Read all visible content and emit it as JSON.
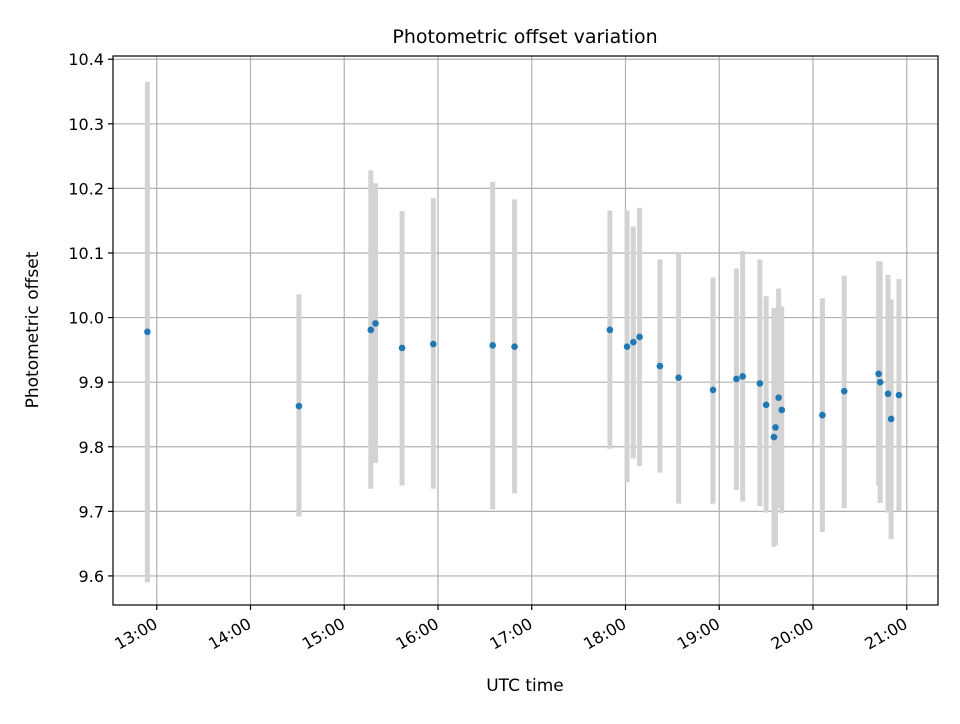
{
  "chart_data": {
    "type": "scatter",
    "title": "Photometric offset variation",
    "xlabel": "UTC time",
    "ylabel": "Photometric offset",
    "x_ticks": [
      "13:00",
      "14:00",
      "15:00",
      "16:00",
      "17:00",
      "18:00",
      "19:00",
      "20:00",
      "21:00"
    ],
    "y_ticks": [
      "9.6",
      "9.7",
      "9.8",
      "9.9",
      "10.0",
      "10.1",
      "10.2",
      "10.3",
      "10.4"
    ],
    "xlim": [
      "12:32",
      "21:20"
    ],
    "ylim": [
      9.555,
      10.405
    ],
    "grid": true,
    "marker_color": "#1f77b4",
    "errorbar_color": "#d3d3d3",
    "points": [
      {
        "x": "12:54",
        "y": 9.978,
        "lo": 9.59,
        "hi": 10.365
      },
      {
        "x": "14:31",
        "y": 9.863,
        "lo": 9.692,
        "hi": 10.036
      },
      {
        "x": "15:17",
        "y": 9.981,
        "lo": 9.735,
        "hi": 10.228
      },
      {
        "x": "15:20",
        "y": 9.991,
        "lo": 9.775,
        "hi": 10.208
      },
      {
        "x": "15:37",
        "y": 9.953,
        "lo": 9.74,
        "hi": 10.165
      },
      {
        "x": "15:57",
        "y": 9.959,
        "lo": 9.735,
        "hi": 10.185
      },
      {
        "x": "16:35",
        "y": 9.957,
        "lo": 9.703,
        "hi": 10.21
      },
      {
        "x": "16:49",
        "y": 9.955,
        "lo": 9.728,
        "hi": 10.183
      },
      {
        "x": "17:50",
        "y": 9.981,
        "lo": 9.797,
        "hi": 10.166
      },
      {
        "x": "18:01",
        "y": 9.955,
        "lo": 9.745,
        "hi": 10.166
      },
      {
        "x": "18:05",
        "y": 9.962,
        "lo": 9.782,
        "hi": 10.141
      },
      {
        "x": "18:09",
        "y": 9.97,
        "lo": 9.77,
        "hi": 10.17
      },
      {
        "x": "18:22",
        "y": 9.925,
        "lo": 9.76,
        "hi": 10.09
      },
      {
        "x": "18:34",
        "y": 9.907,
        "lo": 9.712,
        "hi": 10.1
      },
      {
        "x": "18:56",
        "y": 9.888,
        "lo": 9.712,
        "hi": 10.062
      },
      {
        "x": "19:11",
        "y": 9.905,
        "lo": 9.733,
        "hi": 10.076
      },
      {
        "x": "19:15",
        "y": 9.909,
        "lo": 9.715,
        "hi": 10.103
      },
      {
        "x": "19:26",
        "y": 9.898,
        "lo": 9.708,
        "hi": 10.09
      },
      {
        "x": "19:30",
        "y": 9.865,
        "lo": 9.698,
        "hi": 10.033
      },
      {
        "x": "19:35",
        "y": 9.815,
        "lo": 9.645,
        "hi": 10.015
      },
      {
        "x": "19:36",
        "y": 9.83,
        "lo": 9.648,
        "hi": 10.012
      },
      {
        "x": "19:38",
        "y": 9.876,
        "lo": 9.705,
        "hi": 10.045
      },
      {
        "x": "19:40",
        "y": 9.857,
        "lo": 9.697,
        "hi": 10.017
      },
      {
        "x": "20:06",
        "y": 9.849,
        "lo": 9.668,
        "hi": 10.03
      },
      {
        "x": "20:20",
        "y": 9.886,
        "lo": 9.705,
        "hi": 10.065
      },
      {
        "x": "20:42",
        "y": 9.913,
        "lo": 9.74,
        "hi": 10.087
      },
      {
        "x": "20:43",
        "y": 9.9,
        "lo": 9.713,
        "hi": 10.087
      },
      {
        "x": "20:48",
        "y": 9.882,
        "lo": 9.698,
        "hi": 10.066
      },
      {
        "x": "20:50",
        "y": 9.843,
        "lo": 9.657,
        "hi": 10.028
      },
      {
        "x": "20:55",
        "y": 9.88,
        "lo": 9.7,
        "hi": 10.06
      }
    ]
  }
}
